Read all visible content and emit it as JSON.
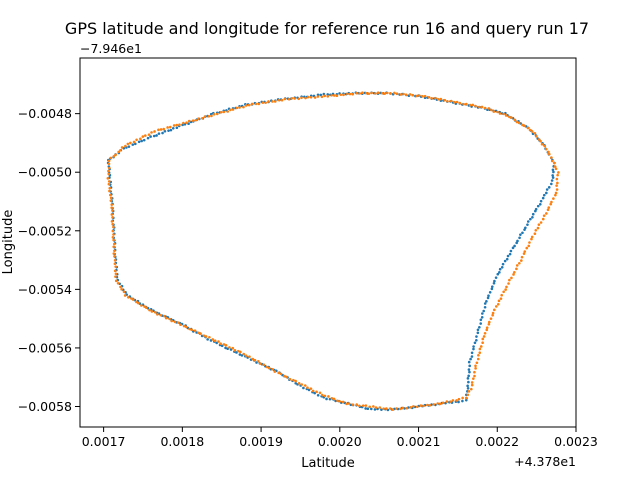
{
  "chart_data": {
    "type": "scatter",
    "title": "GPS latitude and longitude for reference run 16 and query run 17",
    "xlabel": "Latitude",
    "ylabel": "Longitude",
    "x_offset_label": "+4.378e1",
    "y_offset_label": "−7.946e1",
    "xlim": [
      0.00167,
      0.0023
    ],
    "ylim": [
      -0.00587,
      -0.00461
    ],
    "x_ticks": [
      0.0017,
      0.0018,
      0.0019,
      0.002,
      0.0021,
      0.0022,
      0.0023
    ],
    "x_tick_labels": [
      "0.0017",
      "0.0018",
      "0.0019",
      "0.0020",
      "0.0021",
      "0.0022",
      "0.0023"
    ],
    "y_ticks": [
      -0.0048,
      -0.005,
      -0.0052,
      -0.0054,
      -0.0056,
      -0.0058
    ],
    "y_tick_labels": [
      "−0.0048",
      "−0.0050",
      "−0.0052",
      "−0.0054",
      "−0.0056",
      "−0.0058"
    ],
    "grid": false,
    "series": [
      {
        "name": "reference run 16",
        "color": "#1f77b4",
        "path": [
          [
            0.001708,
            -0.00502
          ],
          [
            0.001706,
            -0.00496
          ],
          [
            0.001725,
            -0.00492
          ],
          [
            0.00176,
            -0.00488
          ],
          [
            0.0018,
            -0.00484
          ],
          [
            0.00184,
            -0.0048
          ],
          [
            0.00188,
            -0.00477
          ],
          [
            0.00193,
            -0.00475
          ],
          [
            0.00198,
            -0.004735
          ],
          [
            0.00202,
            -0.00473
          ],
          [
            0.00206,
            -0.00473
          ],
          [
            0.0021,
            -0.00474
          ],
          [
            0.00214,
            -0.00476
          ],
          [
            0.00218,
            -0.00478
          ],
          [
            0.00221,
            -0.0048
          ],
          [
            0.00224,
            -0.00485
          ],
          [
            0.00226,
            -0.00491
          ],
          [
            0.002272,
            -0.00497
          ],
          [
            0.00227,
            -0.00503
          ],
          [
            0.002258,
            -0.00509
          ],
          [
            0.00224,
            -0.00517
          ],
          [
            0.00222,
            -0.00526
          ],
          [
            0.0022,
            -0.00535
          ],
          [
            0.002185,
            -0.00545
          ],
          [
            0.002175,
            -0.00555
          ],
          [
            0.002165,
            -0.00565
          ],
          [
            0.002162,
            -0.00575
          ],
          [
            0.00216,
            -0.00578
          ],
          [
            0.00213,
            -0.00579
          ],
          [
            0.0021,
            -0.0058
          ],
          [
            0.00207,
            -0.00581
          ],
          [
            0.00204,
            -0.00581
          ],
          [
            0.00201,
            -0.00579
          ],
          [
            0.00198,
            -0.00577
          ],
          [
            0.00195,
            -0.00573
          ],
          [
            0.00192,
            -0.00568
          ],
          [
            0.00188,
            -0.00563
          ],
          [
            0.00184,
            -0.00558
          ],
          [
            0.0018,
            -0.00552
          ],
          [
            0.00176,
            -0.00547
          ],
          [
            0.00173,
            -0.00542
          ],
          [
            0.001718,
            -0.00537
          ],
          [
            0.001715,
            -0.0053
          ],
          [
            0.001713,
            -0.0052
          ],
          [
            0.001711,
            -0.00511
          ],
          [
            0.001708,
            -0.00502
          ]
        ]
      },
      {
        "name": "query run 17",
        "color": "#ff7f0e",
        "path": [
          [
            0.001706,
            -0.00502
          ],
          [
            0.001707,
            -0.00496
          ],
          [
            0.001727,
            -0.00491
          ],
          [
            0.001765,
            -0.00486
          ],
          [
            0.001805,
            -0.00483
          ],
          [
            0.001845,
            -0.0048
          ],
          [
            0.001885,
            -0.00477
          ],
          [
            0.001935,
            -0.00475
          ],
          [
            0.001985,
            -0.00474
          ],
          [
            0.002025,
            -0.00473
          ],
          [
            0.002065,
            -0.00473
          ],
          [
            0.002105,
            -0.00474
          ],
          [
            0.002145,
            -0.00476
          ],
          [
            0.002185,
            -0.00478
          ],
          [
            0.002215,
            -0.00481
          ],
          [
            0.002245,
            -0.00486
          ],
          [
            0.002265,
            -0.00493
          ],
          [
            0.002277,
            -0.005
          ],
          [
            0.002275,
            -0.00507
          ],
          [
            0.002262,
            -0.00514
          ],
          [
            0.002245,
            -0.00522
          ],
          [
            0.002228,
            -0.00531
          ],
          [
            0.00221,
            -0.0054
          ],
          [
            0.002195,
            -0.00548
          ],
          [
            0.002183,
            -0.00556
          ],
          [
            0.002173,
            -0.00566
          ],
          [
            0.002167,
            -0.00574
          ],
          [
            0.00216,
            -0.00577
          ],
          [
            0.002128,
            -0.00579
          ],
          [
            0.002098,
            -0.0058
          ],
          [
            0.002068,
            -0.00581
          ],
          [
            0.002038,
            -0.0058
          ],
          [
            0.002008,
            -0.00579
          ],
          [
            0.001978,
            -0.00576
          ],
          [
            0.001948,
            -0.00572
          ],
          [
            0.001918,
            -0.00568
          ],
          [
            0.001878,
            -0.00562
          ],
          [
            0.001838,
            -0.00557
          ],
          [
            0.001798,
            -0.00552
          ],
          [
            0.001758,
            -0.00547
          ],
          [
            0.001728,
            -0.00542
          ],
          [
            0.001716,
            -0.00537
          ],
          [
            0.001714,
            -0.0053
          ],
          [
            0.001712,
            -0.0052
          ],
          [
            0.00171,
            -0.00511
          ],
          [
            0.001706,
            -0.00502
          ]
        ]
      }
    ]
  }
}
